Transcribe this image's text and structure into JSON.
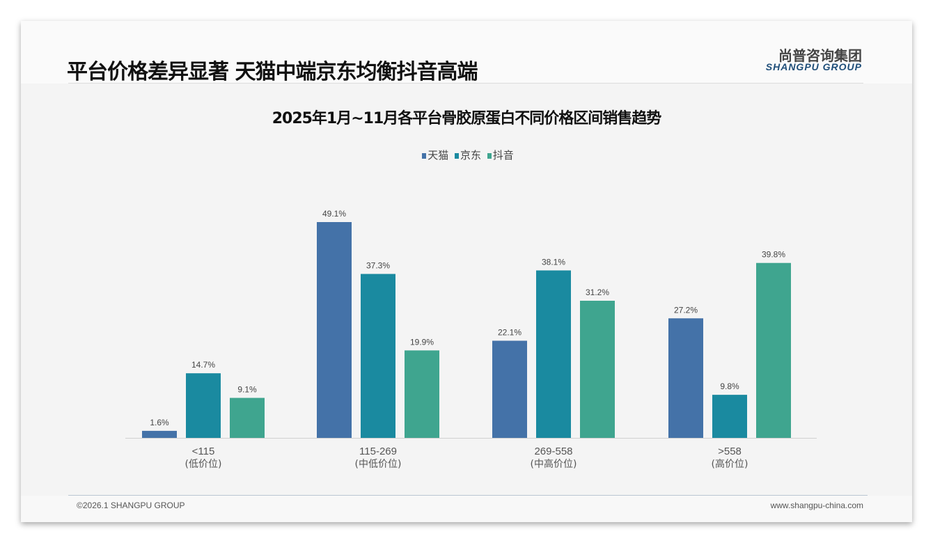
{
  "header": {
    "title": "平台价格差异显著 天猫中端京东均衡抖音高端",
    "logo_cn": "尚普咨询集团",
    "logo_en": "SHANGPU GROUP"
  },
  "footer": {
    "copyright": "©2026.1 SHANGPU GROUP",
    "website": "www.shangpu-china.com"
  },
  "chart_data": {
    "type": "bar",
    "title": "2025年1月~11月各平台骨胶原蛋白不同价格区间销售趋势",
    "categories": [
      "<115",
      "115-269",
      "269-558",
      ">558"
    ],
    "category_sublabels": [
      "(低价位)",
      "(中低价位)",
      "(中高价位)",
      "(高价位)"
    ],
    "series": [
      {
        "name": "天猫",
        "color": "#4472a8",
        "values": [
          1.6,
          49.1,
          22.1,
          27.2
        ]
      },
      {
        "name": "京东",
        "color": "#1a8aa0",
        "values": [
          14.7,
          37.3,
          38.1,
          9.8
        ]
      },
      {
        "name": "抖音",
        "color": "#3fa58f",
        "values": [
          9.1,
          19.9,
          31.2,
          39.8
        ]
      }
    ],
    "unit": "%",
    "ylim": [
      0,
      50
    ],
    "legend_position": "top-center",
    "grid": false
  }
}
